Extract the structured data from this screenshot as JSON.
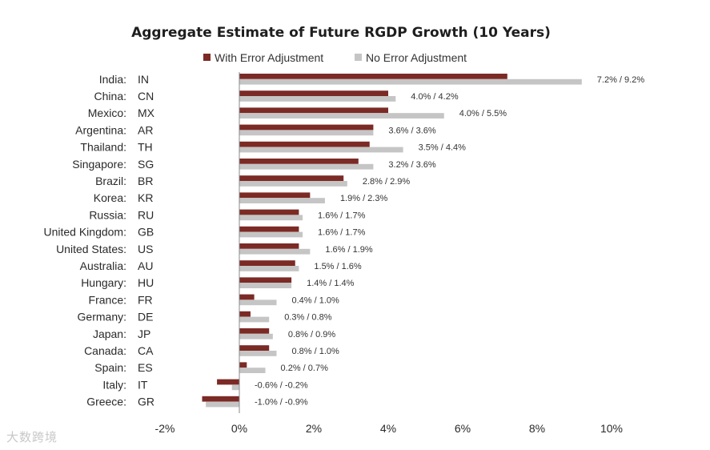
{
  "chart_data": {
    "type": "bar",
    "orientation": "horizontal",
    "title": "Aggregate Estimate of Future RGDP Growth (10 Years)",
    "legend_position": "top",
    "series": [
      {
        "name": "With Error Adjustment",
        "color": "#7b2a25",
        "values": [
          7.2,
          4.0,
          4.0,
          3.6,
          3.5,
          3.2,
          2.8,
          1.9,
          1.6,
          1.6,
          1.6,
          1.5,
          1.4,
          0.4,
          0.3,
          0.8,
          0.8,
          0.2,
          -0.6,
          -1.0
        ]
      },
      {
        "name": "No Error Adjustment",
        "color": "#c5c5c5",
        "values": [
          9.2,
          4.2,
          5.5,
          3.6,
          4.4,
          3.6,
          2.9,
          2.3,
          1.7,
          1.7,
          1.9,
          1.6,
          1.4,
          1.0,
          0.8,
          0.9,
          1.0,
          0.7,
          -0.2,
          -0.9
        ]
      }
    ],
    "categories": [
      {
        "country": "India:",
        "code": "IN",
        "label": "7.2% / 9.2%"
      },
      {
        "country": "China:",
        "code": "CN",
        "label": "4.0% / 4.2%"
      },
      {
        "country": "Mexico:",
        "code": "MX",
        "label": "4.0% / 5.5%"
      },
      {
        "country": "Argentina:",
        "code": "AR",
        "label": "3.6% / 3.6%"
      },
      {
        "country": "Thailand:",
        "code": "TH",
        "label": "3.5% / 4.4%"
      },
      {
        "country": "Singapore:",
        "code": "SG",
        "label": "3.2% / 3.6%"
      },
      {
        "country": "Brazil:",
        "code": "BR",
        "label": "2.8% / 2.9%"
      },
      {
        "country": "Korea:",
        "code": "KR",
        "label": "1.9% / 2.3%"
      },
      {
        "country": "Russia:",
        "code": "RU",
        "label": "1.6% / 1.7%"
      },
      {
        "country": "United Kingdom:",
        "code": "GB",
        "label": "1.6% / 1.7%"
      },
      {
        "country": "United States:",
        "code": "US",
        "label": "1.6% / 1.9%"
      },
      {
        "country": "Australia:",
        "code": "AU",
        "label": "1.5% / 1.6%"
      },
      {
        "country": "Hungary:",
        "code": "HU",
        "label": "1.4% / 1.4%"
      },
      {
        "country": "France:",
        "code": "FR",
        "label": "0.4% / 1.0%"
      },
      {
        "country": "Germany:",
        "code": "DE",
        "label": "0.3% / 0.8%"
      },
      {
        "country": "Japan:",
        "code": "JP",
        "label": "0.8% / 0.9%"
      },
      {
        "country": "Canada:",
        "code": "CA",
        "label": "0.8% / 1.0%"
      },
      {
        "country": "Spain:",
        "code": "ES",
        "label": "0.2% / 0.7%"
      },
      {
        "country": "Italy:",
        "code": "IT",
        "label": "-0.6% / -0.2%"
      },
      {
        "country": "Greece:",
        "code": "GR",
        "label": "-1.0% / -0.9%"
      }
    ],
    "xlim": [
      -2,
      10
    ],
    "xticks": [
      -2,
      0,
      2,
      4,
      6,
      8,
      10
    ],
    "xtick_labels": [
      "-2%",
      "0%",
      "2%",
      "4%",
      "6%",
      "8%",
      "10%"
    ],
    "grid": false
  },
  "watermark": "大数跨境"
}
